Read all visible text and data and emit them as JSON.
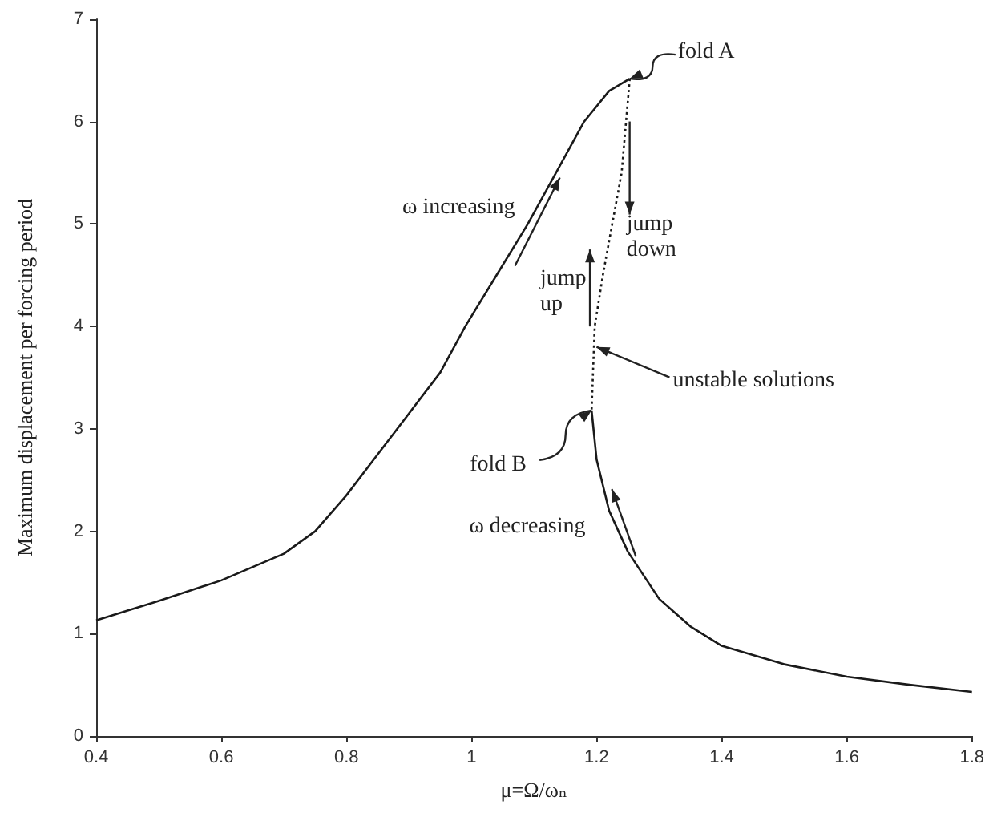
{
  "chart_data": {
    "type": "line",
    "xlabel": "μ=Ω/ωₙ",
    "ylabel": "Maximum displacement per forcing period",
    "xlim": [
      0.4,
      1.8
    ],
    "xticks": [
      0.4,
      0.6,
      0.8,
      1,
      1.2,
      1.4,
      1.6,
      1.8
    ],
    "ylim": [
      0,
      7
    ],
    "yticks": [
      0,
      1,
      2,
      3,
      4,
      5,
      6,
      7
    ],
    "grid": false,
    "marker": "none",
    "series": [
      {
        "color": "#1a1a1a",
        "line_style": "solid",
        "x": [
          0.4,
          0.5,
          0.6,
          0.7,
          0.75,
          0.8,
          0.85,
          0.9,
          0.95,
          0.99,
          1.04,
          1.09,
          1.135,
          1.18,
          1.22,
          1.253
        ],
        "values": [
          1.13,
          1.32,
          1.52,
          1.78,
          2.0,
          2.35,
          2.75,
          3.15,
          3.55,
          4.0,
          4.5,
          5.0,
          5.5,
          6.0,
          6.3,
          6.42
        ]
      },
      {
        "color": "#1a1a1a",
        "line_style": "dotted",
        "x": [
          1.253,
          1.24,
          1.225,
          1.21,
          1.197,
          1.192
        ],
        "values": [
          6.42,
          5.5,
          5.0,
          4.5,
          4.0,
          3.18
        ]
      },
      {
        "color": "#1a1a1a",
        "line_style": "solid",
        "x": [
          1.192,
          1.2,
          1.22,
          1.25,
          1.3,
          1.35,
          1.4,
          1.5,
          1.6,
          1.7,
          1.8
        ],
        "values": [
          3.18,
          2.7,
          2.2,
          1.8,
          1.34,
          1.07,
          0.88,
          0.7,
          0.58,
          0.5,
          0.43
        ]
      }
    ],
    "annotations": [
      {
        "text": "fold A",
        "x": 1.253,
        "y": 6.42
      },
      {
        "text": "ω increasing",
        "x": 1.09,
        "y": 5.0
      },
      {
        "text": "jump down",
        "x": 1.24,
        "y": 5.5
      },
      {
        "text": "jump up",
        "x": 1.197,
        "y": 4.0
      },
      {
        "text": "unstable solutions",
        "x": 1.2,
        "y": 3.8
      },
      {
        "text": "fold B",
        "x": 1.192,
        "y": 3.18
      },
      {
        "text": "ω decreasing",
        "x": 1.25,
        "y": 1.8
      }
    ]
  }
}
